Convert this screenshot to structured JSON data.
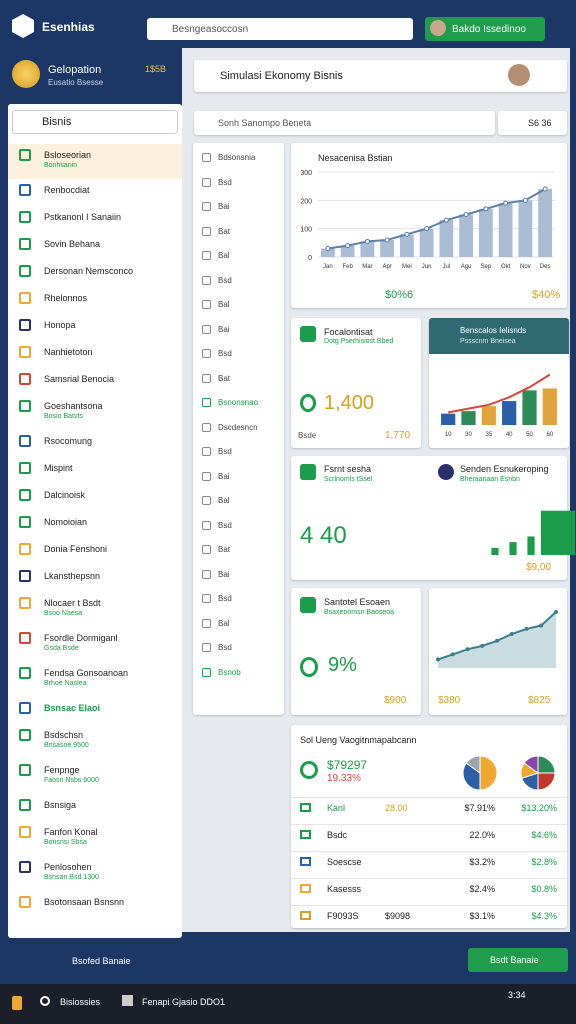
{
  "topbar": {
    "brand": "Esenhias",
    "search": "Besngeasoccosn",
    "account": "Bakdo Issedinoo"
  },
  "sidebar": {
    "balance_title": "Gelopation",
    "balance_sub": "Eusatio Bsesse",
    "balance_value": "1$5B",
    "search": "Bisnis",
    "items": [
      {
        "label": "Bsloseorian",
        "sub": "Bonhsanin"
      },
      {
        "label": "Renbocdiat"
      },
      {
        "label": "Pstkanonl I Sanaiin"
      },
      {
        "label": "Sovin Behana"
      },
      {
        "label": "Dersonan Nemsconco"
      },
      {
        "label": "Rhelonnos"
      },
      {
        "label": "Honopa"
      },
      {
        "label": "Nanhietoton"
      },
      {
        "label": "Samsrial Benocia"
      },
      {
        "label": "Goeshantsona",
        "sub": "Bosio Batvts"
      },
      {
        "label": "Rsocomung"
      },
      {
        "label": "Mispint"
      },
      {
        "label": "Dalcinoisk"
      },
      {
        "label": "Nomoioian"
      },
      {
        "label": "Donia Fenshoni"
      },
      {
        "label": "Lkansthepsnn"
      },
      {
        "label": "Nlocaer t Bsdt",
        "sub": "Bsoo Naesa"
      },
      {
        "label": "Fsordle Dormiganl",
        "sub": "Gsda Bsde"
      },
      {
        "label": "Fendsa Gonsoanoan",
        "sub": "Brhoe Naslea"
      },
      {
        "label": "Bsnsac Elaoi"
      },
      {
        "label": "Bsdschsn",
        "sub": "Bnsasoe 9500"
      },
      {
        "label": "Fenpnge",
        "sub": "Faosn Nsbs 6000"
      },
      {
        "label": "Bsnsiga"
      },
      {
        "label": "Fanfon Konal",
        "sub": "Bonsnsi Sbsa"
      },
      {
        "label": "Penlosohen",
        "sub": "Bsnsan Bsd 1300"
      },
      {
        "label": "Bsotonsaan Bsnsnn"
      }
    ],
    "footer": "Bsofed Banaie"
  },
  "main": {
    "title": "Simulasi Ekonomy Bisnis",
    "search": "Sonh Sanompo Beneta",
    "search_tag": "S6 36",
    "filters": [
      "Bdsonsnia",
      "Bsd",
      "Bai",
      "Bat",
      "Bal",
      "Bsd",
      "Bal",
      "Bai",
      "Bsd",
      "Bat",
      "Bsnonsnao",
      "Dscdesncn",
      "Bsd",
      "Bai",
      "Bal",
      "Bsd",
      "Bat",
      "Bai",
      "Bsd",
      "Bal",
      "Bsd",
      "Bsnob"
    ],
    "trend": {
      "title": "Nesacenisa Bstian",
      "categories": [
        "Jan",
        "Feb",
        "Mar",
        "Apr",
        "Mei",
        "Jun",
        "Jul",
        "Agu",
        "Sep",
        "Okt",
        "Nov",
        "Des"
      ],
      "values": [
        30,
        40,
        55,
        60,
        80,
        100,
        130,
        150,
        170,
        190,
        200,
        240
      ],
      "ylim": [
        0,
        300
      ],
      "yticks": [
        0,
        100,
        200,
        300
      ],
      "color": "#5f7fa8",
      "left_value": "$0%6",
      "right_value": "$40%"
    },
    "card_a": {
      "title": "Focalontisat",
      "sub": "Dotg Pserhisiost Bbed",
      "value": "1,400",
      "footer_left": "Bsde",
      "footer_right": "1,770"
    },
    "card_b": {
      "title": "Benscalos Ielisnds",
      "sub": "Pssscnm Bneisea",
      "categories": [
        "10",
        "30",
        "35",
        "40",
        "50",
        "60"
      ],
      "values": [
        18,
        22,
        30,
        38,
        55,
        58
      ],
      "colors": [
        "#2b5fa8",
        "#2e8b57",
        "#e0a43a",
        "#2b5fa8",
        "#2e8b57",
        "#e0a43a"
      ],
      "line": [
        20,
        26,
        32,
        44,
        60,
        80
      ],
      "line_color": "#d9443a",
      "ylim": [
        0,
        100
      ]
    },
    "card_c": {
      "title": "Fsrnt sesha",
      "sub": "Scrlnomls tSsel",
      "value": "4 40",
      "title2": "Senden Esnukeroping",
      "sub2": "Bheraanaan Esnbn",
      "values": [
        10,
        18,
        26,
        62
      ],
      "color": "#1a9c4a",
      "ylim": [
        0,
        70
      ],
      "footer": "$9,00"
    },
    "card_d": {
      "title": "Santotel Esoaen",
      "sub": "Bsaxeonmsn Baoseoa",
      "value": "9%",
      "footer": "$900"
    },
    "card_e": {
      "values": [
        10,
        16,
        22,
        26,
        32,
        40,
        46,
        50,
        66
      ],
      "ylim": [
        0,
        80
      ],
      "color": "#3a7f8c",
      "left_value": "$380",
      "right_value": "$825"
    },
    "table": {
      "title": "Sol Ueng Vaogitnmapabcann",
      "total": "$79297",
      "change": "19.33%",
      "pie1": {
        "values": [
          50,
          35,
          15
        ],
        "colors": [
          "#f0a830",
          "#2b5fa8",
          "#9aa5b1"
        ]
      },
      "pie2": {
        "values": [
          25,
          25,
          20,
          15,
          15
        ],
        "colors": [
          "#2e8b57",
          "#c0392b",
          "#2b5fa8",
          "#f0a830",
          "#8e44ad"
        ]
      },
      "rows": [
        {
          "label": "Kanl",
          "a": "28.00",
          "b": "$7.91%",
          "c": "$13.20%"
        },
        {
          "label": "Bsdc",
          "b": "22.0%",
          "c": "$4.6%"
        },
        {
          "label": "Soescse",
          "b": "$3.2%",
          "c": "$2.8%"
        },
        {
          "label": "Kasesss",
          "b": "$2.4%",
          "c": "$0.8%"
        },
        {
          "label": "F9093S",
          "a": "$9098",
          "b": "$3.1%",
          "c": "$4.3%"
        }
      ]
    },
    "action": "Bsdt Banaie"
  },
  "taskbar": {
    "start": "Bisiossies",
    "app": "Fenapi Gjasio DDO1",
    "time": "3:34"
  }
}
